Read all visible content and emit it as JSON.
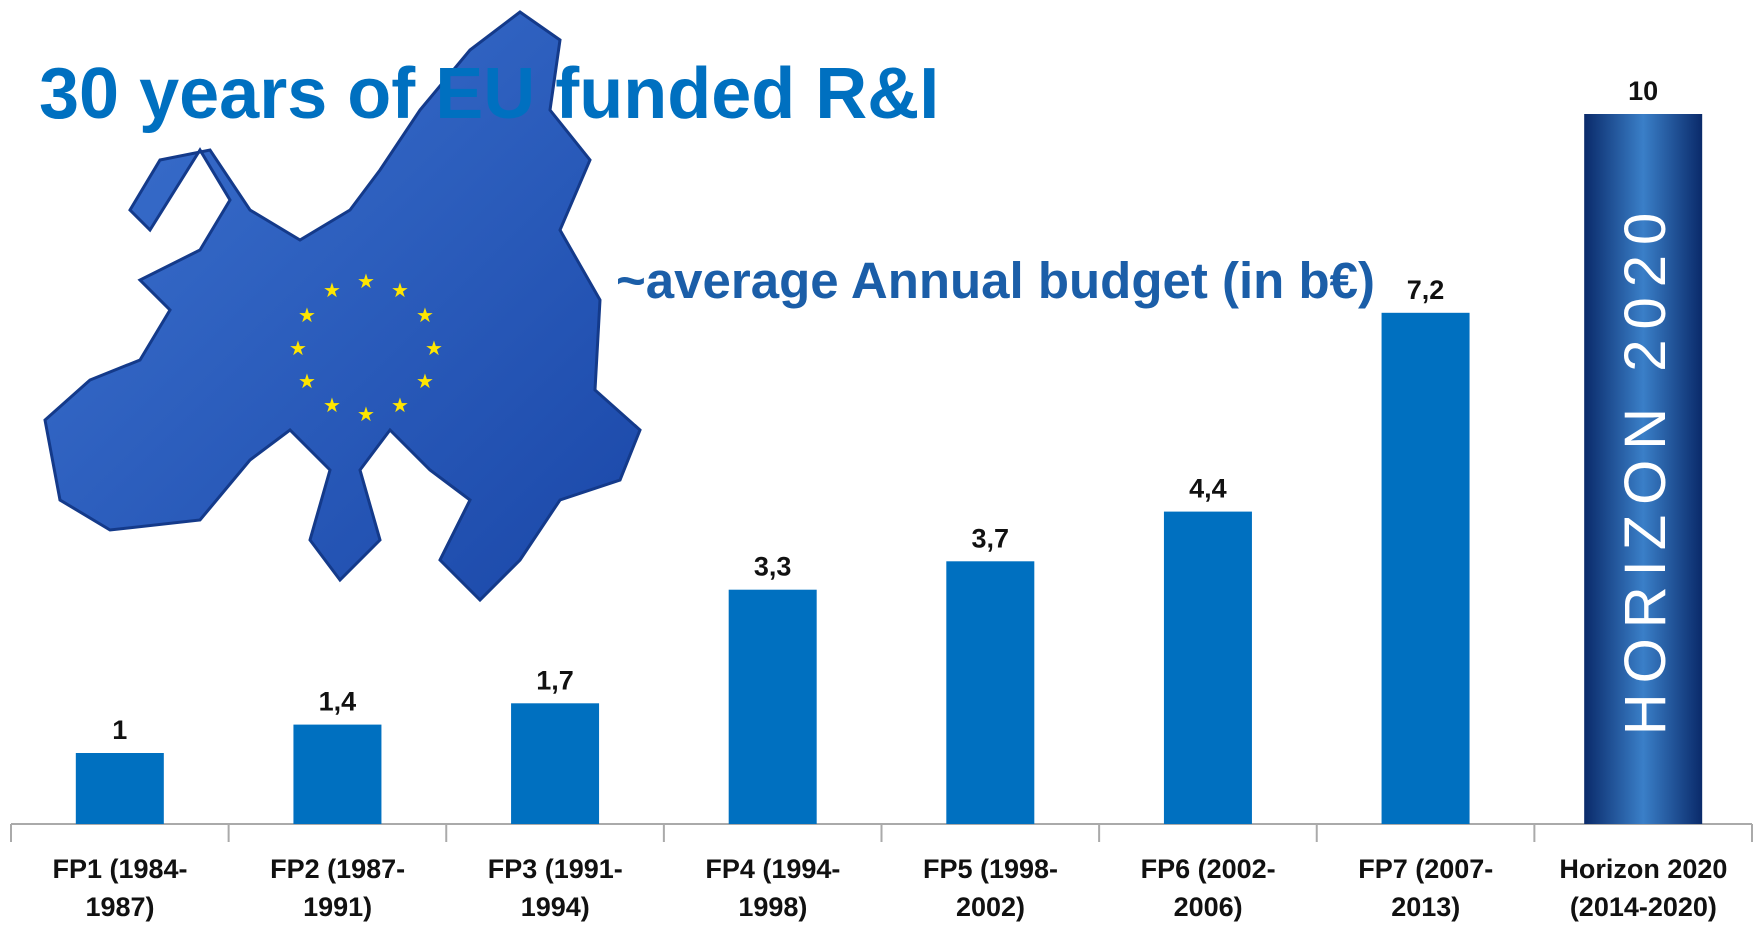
{
  "chart_data": {
    "type": "bar",
    "title": "30 years of EU funded R&I",
    "subtitle": "~average Annual budget (in b€)",
    "annotation": "HORIZON 2020",
    "categories": [
      "FP1 (1984-\n1987)",
      "FP2 (1987-\n1991)",
      "FP3 (1991-\n1994)",
      "FP4 (1994-\n1998)",
      "FP5 (1998-\n2002)",
      "FP6 (2002-\n2006)",
      "FP7 (2007-\n2013)",
      "Horizon 2020\n(2014-2020)"
    ],
    "values": [
      1,
      1.4,
      1.7,
      3.3,
      3.7,
      4.4,
      7.2,
      10
    ],
    "value_labels": [
      "1",
      "1,4",
      "1,7",
      "3,3",
      "3,7",
      "4,4",
      "7,2",
      "10"
    ],
    "color": "#0070c0"
  }
}
